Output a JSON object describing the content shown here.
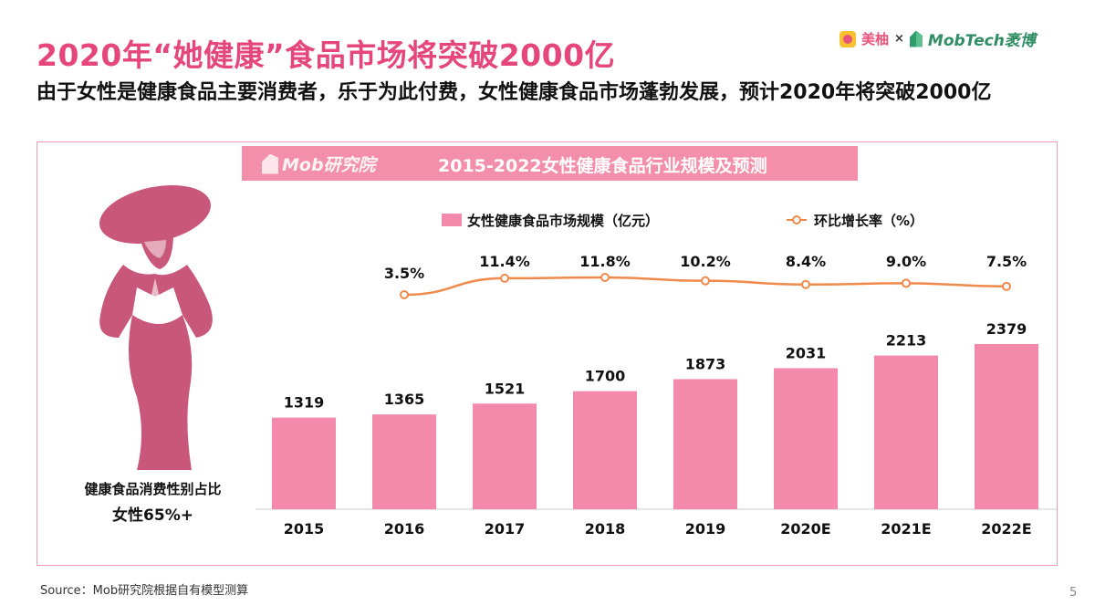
{
  "header": {
    "title": "2020年“她健康”食品市场将突破2000亿",
    "subtitle": "由于女性是健康食品主要消费者，乐于为此付费，女性健康食品市场蓬勃发展，预计2020年将突破2000亿",
    "logos": {
      "brand1": "美柚",
      "separator": "×",
      "brand2": "MobTech袤博"
    }
  },
  "banner": {
    "logo": "Mob研究院",
    "title": "2015-2022女性健康食品行业规模及预测"
  },
  "side_panel": {
    "label": "健康食品消费性别占比",
    "value": "女性65%+"
  },
  "chart_data": {
    "type": "bar+line",
    "title": "2015-2022女性健康食品行业规模及预测",
    "categories": [
      "2015",
      "2016",
      "2017",
      "2018",
      "2019",
      "2020E",
      "2021E",
      "2022E"
    ],
    "series": [
      {
        "name": "女性健康食品市场规模（亿元）",
        "type": "bar",
        "color": "#f48aab",
        "values": [
          1319,
          1365,
          1521,
          1700,
          1873,
          2031,
          2213,
          2379
        ],
        "labels": [
          "1319",
          "1365",
          "1521",
          "1700",
          "1873",
          "2031",
          "2213",
          "2379"
        ]
      },
      {
        "name": "环比增长率（%）",
        "type": "line",
        "color": "#f08a4b",
        "values": [
          null,
          3.5,
          11.4,
          11.8,
          10.2,
          8.4,
          9.0,
          7.5
        ],
        "labels": [
          "",
          "3.5%",
          "11.4%",
          "11.8%",
          "10.2%",
          "8.4%",
          "9.0%",
          "7.5%"
        ]
      }
    ],
    "legend": "top",
    "grid": false
  },
  "footer": {
    "source": "Source：Mob研究院根据自有模型测算",
    "page": "5"
  }
}
